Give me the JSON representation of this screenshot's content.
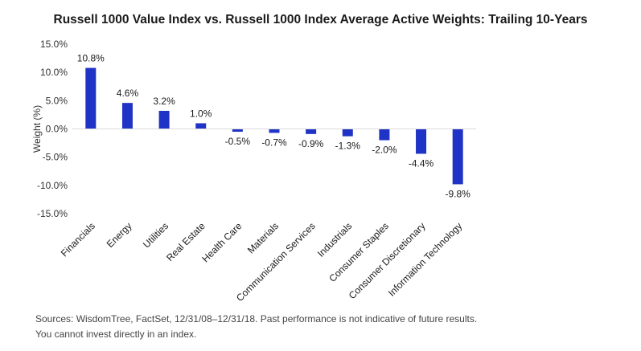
{
  "chart_data": {
    "type": "bar",
    "title": "Russell 1000 Value Index vs. Russell 1000 Index Average Active Weights: Trailing 10-Years",
    "xlabel": "",
    "ylabel": "Weight (%)",
    "ylim": [
      -15,
      15
    ],
    "yticks": [
      15,
      10,
      5,
      0,
      -5,
      -10,
      -15
    ],
    "ytick_labels": [
      "15.0%",
      "10.0%",
      "5.0%",
      "0.0%",
      "-5.0%",
      "-10.0%",
      "-15.0%"
    ],
    "grid": false,
    "legend": "none",
    "bar_color": "#1f33c6",
    "categories": [
      "Financials",
      "Energy",
      "Utilities",
      "Real Estate",
      "Health Care",
      "Materials",
      "Communication Services",
      "Industrials",
      "Consumer Staples",
      "Consumer Discretionary",
      "Information Technology"
    ],
    "values": [
      10.8,
      4.6,
      3.2,
      1.0,
      -0.5,
      -0.7,
      -0.9,
      -1.3,
      -2.0,
      -4.4,
      -9.8
    ],
    "value_labels": [
      "10.8%",
      "4.6%",
      "3.2%",
      "1.0%",
      "-0.5%",
      "-0.7%",
      "-0.9%",
      "-1.3%",
      "-2.0%",
      "-4.4%",
      "-9.8%"
    ]
  },
  "footnote": {
    "line1": "Sources: WisdomTree, FactSet, 12/31/08–12/31/18. Past performance is not indicative of future results.",
    "line2": "You cannot invest directly in an index."
  }
}
